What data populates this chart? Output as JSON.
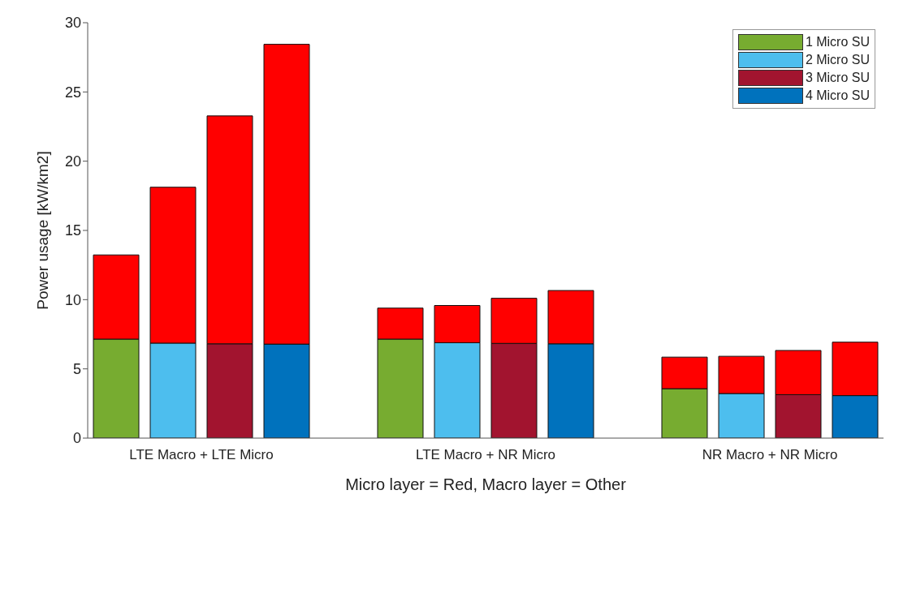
{
  "chart_data": {
    "type": "bar",
    "stacked": true,
    "categories": [
      null,
      "LTE Macro + LTE Micro",
      null,
      null,
      null,
      null,
      "LTE Macro + NR Micro",
      null,
      null,
      null,
      null,
      "NR Macro + NR Micro",
      null,
      null
    ],
    "series": [
      {
        "name": "1 Micro SU",
        "color": "#77ac30",
        "values": [
          7.15,
          null,
          null,
          null,
          null,
          7.15,
          null,
          null,
          null,
          null,
          3.57,
          null,
          null,
          null
        ]
      },
      {
        "name": "2 Micro SU",
        "color": "#4dbeee",
        "values": [
          null,
          6.86,
          null,
          null,
          null,
          null,
          6.89,
          null,
          null,
          null,
          null,
          3.22,
          null,
          null
        ]
      },
      {
        "name": "3 Micro SU",
        "color": "#a2142f",
        "values": [
          null,
          null,
          6.81,
          null,
          null,
          null,
          null,
          6.84,
          null,
          null,
          null,
          null,
          3.14,
          null
        ]
      },
      {
        "name": "4 Micro SU",
        "color": "#0072bd",
        "values": [
          null,
          null,
          null,
          6.79,
          null,
          null,
          null,
          null,
          6.81,
          null,
          null,
          null,
          null,
          3.07
        ]
      },
      {
        "color": "#ff0000",
        "values": [
          6.08,
          11.26,
          16.46,
          21.65,
          null,
          2.24,
          2.69,
          3.26,
          3.85,
          null,
          2.28,
          2.69,
          3.19,
          3.86
        ]
      }
    ],
    "ylabel": "Power usage [kW/km2]",
    "xlabel": "Micro layer = Red,  Macro layer = Other",
    "ylim": [
      0,
      30
    ],
    "yticks": [
      0,
      5,
      10,
      15,
      20,
      25,
      30
    ],
    "legend": "top right"
  }
}
